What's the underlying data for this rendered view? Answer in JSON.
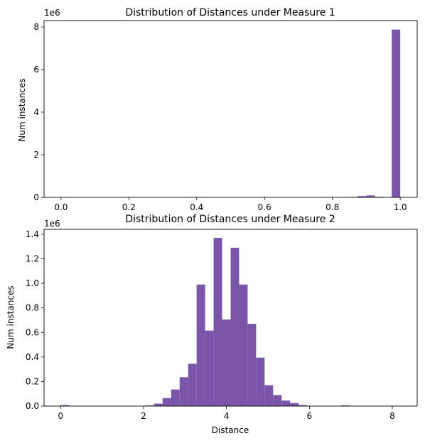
{
  "chart_data": [
    {
      "type": "bar",
      "subtype": "histogram",
      "title": "Distribution of Distances under Measure 1",
      "xlabel": "",
      "ylabel": "Num instances",
      "y_offset_label": "1e6",
      "xlim": [
        -0.05,
        1.05
      ],
      "ylim": [
        0,
        8.3
      ],
      "xticks": [
        0.0,
        0.2,
        0.4,
        0.6,
        0.8,
        1.0
      ],
      "xtick_labels": [
        "0.0",
        "0.2",
        "0.4",
        "0.6",
        "0.8",
        "1.0"
      ],
      "yticks": [
        0,
        2,
        4,
        6,
        8
      ],
      "ytick_labels": [
        "0",
        "2",
        "4",
        "6",
        "8"
      ],
      "bar_color": "#7b55aa",
      "bin_width": 0.025,
      "bins": [
        {
          "x0": 0.0,
          "value": 0.0
        },
        {
          "x0": 0.85,
          "value": 0.02
        },
        {
          "x0": 0.875,
          "value": 0.06
        },
        {
          "x0": 0.9,
          "value": 0.09
        },
        {
          "x0": 0.925,
          "value": 0.03
        },
        {
          "x0": 0.95,
          "value": 0.0
        },
        {
          "x0": 0.975,
          "value": 7.88
        }
      ]
    },
    {
      "type": "bar",
      "subtype": "histogram",
      "title": "Distribution of Distances under Measure 2",
      "xlabel": "Distance",
      "ylabel": "Num instances",
      "y_offset_label": "1e6",
      "xlim": [
        -0.4,
        8.6
      ],
      "ylim": [
        0,
        1.44
      ],
      "xticks": [
        0,
        2,
        4,
        6,
        8
      ],
      "xtick_labels": [
        "0",
        "2",
        "4",
        "6",
        "8"
      ],
      "yticks": [
        0.0,
        0.2,
        0.4,
        0.6,
        0.8,
        1.0,
        1.2,
        1.4
      ],
      "ytick_labels": [
        "0.0",
        "0.2",
        "0.4",
        "0.6",
        "0.8",
        "1.0",
        "1.2",
        "1.4"
      ],
      "bar_color": "#7b55aa",
      "bin_width": 0.205,
      "bins": [
        {
          "x0": 0.0,
          "value": 0.008
        },
        {
          "x0": 2.05,
          "value": 0.005
        },
        {
          "x0": 2.255,
          "value": 0.02
        },
        {
          "x0": 2.46,
          "value": 0.065
        },
        {
          "x0": 2.665,
          "value": 0.135
        },
        {
          "x0": 2.87,
          "value": 0.235
        },
        {
          "x0": 3.075,
          "value": 0.345
        },
        {
          "x0": 3.28,
          "value": 0.99
        },
        {
          "x0": 3.485,
          "value": 0.615
        },
        {
          "x0": 3.69,
          "value": 1.37
        },
        {
          "x0": 3.895,
          "value": 0.705
        },
        {
          "x0": 4.1,
          "value": 1.29
        },
        {
          "x0": 4.305,
          "value": 0.99
        },
        {
          "x0": 4.51,
          "value": 0.67
        },
        {
          "x0": 4.715,
          "value": 0.395
        },
        {
          "x0": 4.92,
          "value": 0.17
        },
        {
          "x0": 5.125,
          "value": 0.09
        },
        {
          "x0": 5.33,
          "value": 0.045
        },
        {
          "x0": 5.535,
          "value": 0.025
        },
        {
          "x0": 5.74,
          "value": 0.008
        },
        {
          "x0": 6.765,
          "value": 0.006
        }
      ]
    }
  ]
}
